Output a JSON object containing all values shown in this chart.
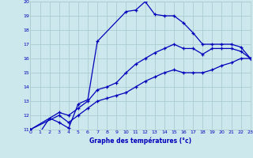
{
  "xlabel": "Graphe des températures (°c)",
  "bg_color": "#cce8ec",
  "grid_color": "#aaccd0",
  "line_color": "#0000bb",
  "xmin": 0,
  "xmax": 23,
  "ymin": 11,
  "ymax": 20,
  "series1_x": [
    0,
    1,
    2,
    3,
    4,
    5,
    6,
    7,
    10,
    11,
    12,
    13,
    14,
    15,
    16,
    17,
    18,
    19,
    20,
    21,
    22,
    23
  ],
  "series1_y": [
    11,
    10.8,
    11.8,
    11.5,
    11.1,
    12.8,
    13.1,
    17.2,
    19.3,
    19.4,
    20.0,
    19.1,
    19.0,
    19.0,
    18.5,
    17.8,
    17.0,
    17.0,
    17.0,
    17.0,
    16.8,
    16.0
  ],
  "series2_x": [
    0,
    3,
    4,
    5,
    6,
    7,
    8,
    9,
    10,
    11,
    12,
    13,
    14,
    15,
    16,
    17,
    18,
    19,
    20,
    21,
    22,
    23
  ],
  "series2_y": [
    11,
    12.0,
    11.5,
    12.0,
    12.5,
    13.0,
    13.2,
    13.4,
    13.6,
    14.0,
    14.4,
    14.7,
    15.0,
    15.2,
    15.0,
    15.0,
    15.0,
    15.2,
    15.5,
    15.7,
    16.0,
    16.0
  ],
  "series3_x": [
    0,
    3,
    4,
    5,
    6,
    7,
    8,
    9,
    10,
    11,
    12,
    13,
    14,
    15,
    16,
    17,
    18,
    19,
    20,
    21,
    22,
    23
  ],
  "series3_y": [
    11,
    12.2,
    12.0,
    12.5,
    13.0,
    13.8,
    14.0,
    14.3,
    15.0,
    15.6,
    16.0,
    16.4,
    16.7,
    17.0,
    16.7,
    16.7,
    16.3,
    16.7,
    16.7,
    16.7,
    16.5,
    16.0
  ]
}
